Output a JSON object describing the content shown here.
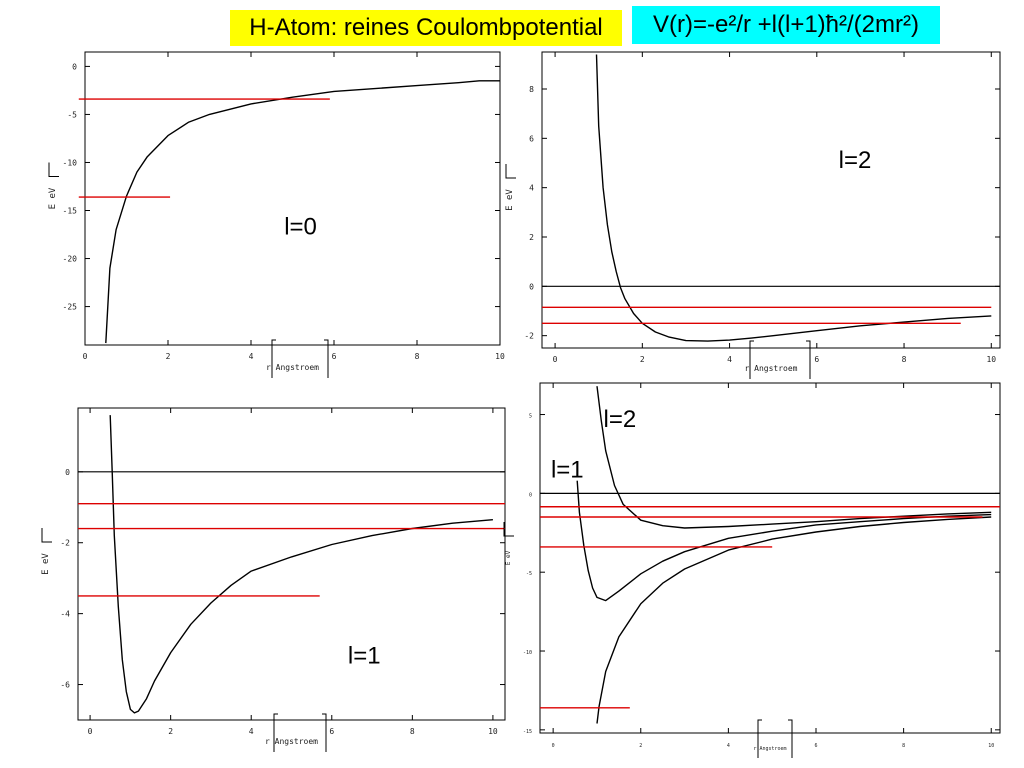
{
  "header": {
    "title": "H-Atom: reines Coulombpotential",
    "formula": "V(r)=-e²/r +l(l+1)ħ²/(2mr²)"
  },
  "colors": {
    "title_bg": "#ffff00",
    "formula_bg": "#00ffff",
    "level_lines": "#dd0000",
    "curves": "#000000"
  },
  "chart_data": [
    {
      "id": "l0",
      "type": "line",
      "xlabel": "r Angstroem",
      "ylabel": "E eV",
      "xlim": [
        0,
        10
      ],
      "ylim": [
        -29,
        1.5
      ],
      "xticks": [
        0,
        2,
        4,
        6,
        8,
        10
      ],
      "xtick_labels": [
        "0",
        "2",
        "4",
        "6",
        "8",
        "10"
      ],
      "yticks": [
        0,
        -5,
        -10,
        -15,
        -20,
        -25
      ],
      "ytick_labels": [
        "0",
        "-5",
        "-10",
        "-15",
        "-20",
        "-25"
      ],
      "zero_line": false,
      "annotations": [
        {
          "text": "l=0",
          "x": 4.8,
          "y": -17.5
        }
      ],
      "series": [
        {
          "x": [
            0.5,
            0.6,
            0.75,
            1.0,
            1.25,
            1.5,
            2.0,
            2.5,
            3.0,
            4.0,
            5.0,
            6.0,
            8.0,
            9.0,
            9.5,
            10.0
          ],
          "y": [
            -28.8,
            -21.0,
            -17.0,
            -13.5,
            -11.0,
            -9.4,
            -7.2,
            -5.8,
            -5.0,
            -3.9,
            -3.2,
            -2.6,
            -2.0,
            -1.7,
            -1.5,
            -1.5
          ]
        }
      ],
      "levels": [
        {
          "y": -3.4,
          "x0": -0.15,
          "x1": 5.9
        },
        {
          "y": -13.6,
          "x0": -0.15,
          "x1": 2.05
        }
      ]
    },
    {
      "id": "l2",
      "type": "line",
      "xlabel": "r Angstroem",
      "ylabel": "E eV",
      "xlim": [
        -0.3,
        10.2
      ],
      "ylim": [
        -2.5,
        9.5
      ],
      "xticks": [
        0,
        2,
        4,
        6,
        8,
        10
      ],
      "xtick_labels": [
        "0",
        "2",
        "4",
        "6",
        "8",
        "10"
      ],
      "yticks": [
        8,
        6,
        4,
        2,
        0,
        -2
      ],
      "ytick_labels": [
        "8",
        "6",
        "4",
        "2",
        "0",
        "-2"
      ],
      "zero_line": true,
      "annotations": [
        {
          "text": "l=2",
          "x": 6.5,
          "y": 4.8
        }
      ],
      "series": [
        {
          "x": [
            0.95,
            1.0,
            1.1,
            1.2,
            1.3,
            1.4,
            1.5,
            1.6,
            1.8,
            2.0,
            2.3,
            2.6,
            3.0,
            3.5,
            4.0,
            4.5,
            5.0,
            6.0,
            7.0,
            8.0,
            9.0,
            9.5,
            10.0
          ],
          "y": [
            9.4,
            6.5,
            4.0,
            2.5,
            1.4,
            0.6,
            -0.05,
            -0.5,
            -1.1,
            -1.5,
            -1.85,
            -2.05,
            -2.2,
            -2.22,
            -2.18,
            -2.1,
            -2.0,
            -1.8,
            -1.6,
            -1.45,
            -1.3,
            -1.25,
            -1.2
          ]
        }
      ],
      "levels": [
        {
          "y": -0.85,
          "x0": -0.3,
          "x1": 10.0
        },
        {
          "y": -1.5,
          "x0": -0.3,
          "x1": 9.3
        }
      ]
    },
    {
      "id": "l1",
      "type": "line",
      "xlabel": "r Angstroem",
      "ylabel": "E eV",
      "xlim": [
        -0.3,
        10.3
      ],
      "ylim": [
        -7.0,
        1.8
      ],
      "xticks": [
        0,
        2,
        4,
        6,
        8,
        10
      ],
      "xtick_labels": [
        "0",
        "2",
        "4",
        "6",
        "8",
        "10"
      ],
      "yticks": [
        0,
        -2,
        -4,
        -6
      ],
      "ytick_labels": [
        "0",
        "-2",
        "-4",
        "-6"
      ],
      "zero_line": true,
      "annotations": [
        {
          "text": "l=1",
          "x": 6.4,
          "y": -5.4
        }
      ],
      "series": [
        {
          "x": [
            0.5,
            0.55,
            0.6,
            0.7,
            0.8,
            0.9,
            1.0,
            1.1,
            1.2,
            1.4,
            1.6,
            2.0,
            2.5,
            3.0,
            3.5,
            4.0,
            5.0,
            6.0,
            7.0,
            8.0,
            9.0,
            10.0
          ],
          "y": [
            1.6,
            0.0,
            -1.8,
            -3.8,
            -5.3,
            -6.2,
            -6.7,
            -6.8,
            -6.75,
            -6.4,
            -5.9,
            -5.1,
            -4.3,
            -3.7,
            -3.2,
            -2.8,
            -2.4,
            -2.05,
            -1.8,
            -1.6,
            -1.45,
            -1.35
          ]
        }
      ],
      "levels": [
        {
          "y": -0.9,
          "x0": -0.3,
          "x1": 10.3
        },
        {
          "y": -1.6,
          "x0": -0.3,
          "x1": 10.3
        },
        {
          "y": -3.5,
          "x0": -0.3,
          "x1": 5.7
        }
      ]
    },
    {
      "id": "combined",
      "type": "line",
      "xlabel": "r Angstroem",
      "ylabel": "E eV",
      "xlim": [
        -0.3,
        10.2
      ],
      "ylim": [
        -15.2,
        7.0
      ],
      "xticks": [
        0,
        2,
        4,
        6,
        8,
        10
      ],
      "xtick_labels": [
        "0",
        "2",
        "4",
        "6",
        "8",
        "10"
      ],
      "yticks": [
        5,
        0,
        -5,
        -10,
        -15
      ],
      "ytick_labels": [
        "5",
        "0",
        "-5",
        "-10",
        "-15"
      ],
      "zero_line": true,
      "annotations": [
        {
          "text": "l=2",
          "x": 1.15,
          "y": 4.2
        },
        {
          "text": "l=1",
          "x": -0.05,
          "y": 1.0
        }
      ],
      "series": [
        {
          "x": [
            1.0,
            1.1,
            1.2,
            1.4,
            1.6,
            2.0,
            2.5,
            3.0,
            4.0,
            5.0,
            6.0,
            7.0,
            8.0,
            9.0,
            10.0
          ],
          "y": [
            6.8,
            4.6,
            2.7,
            0.5,
            -0.7,
            -1.7,
            -2.05,
            -2.2,
            -2.1,
            -1.95,
            -1.8,
            -1.6,
            -1.45,
            -1.3,
            -1.2
          ]
        },
        {
          "x": [
            0.55,
            0.6,
            0.7,
            0.8,
            0.9,
            1.0,
            1.2,
            1.5,
            2.0,
            2.5,
            3.0,
            4.0,
            5.0,
            6.0,
            7.0,
            8.0,
            9.0,
            10.0
          ],
          "y": [
            0.8,
            -1.2,
            -3.3,
            -4.9,
            -6.0,
            -6.6,
            -6.8,
            -6.2,
            -5.1,
            -4.3,
            -3.7,
            -2.85,
            -2.4,
            -2.0,
            -1.8,
            -1.6,
            -1.45,
            -1.35
          ]
        },
        {
          "x": [
            1.0,
            1.05,
            1.2,
            1.5,
            2.0,
            2.5,
            3.0,
            4.0,
            5.0,
            6.0,
            7.0,
            8.0,
            9.0,
            10.0
          ],
          "y": [
            -14.6,
            -13.5,
            -11.3,
            -9.1,
            -7.0,
            -5.7,
            -4.8,
            -3.6,
            -2.9,
            -2.45,
            -2.1,
            -1.85,
            -1.65,
            -1.5
          ]
        }
      ],
      "levels": [
        {
          "y": -0.85,
          "x0": -0.3,
          "x1": 10.2
        },
        {
          "y": -1.5,
          "x0": -0.3,
          "x1": 9.8
        },
        {
          "y": -3.4,
          "x0": -0.3,
          "x1": 5.0
        },
        {
          "y": -13.6,
          "x0": -0.3,
          "x1": 1.75
        }
      ]
    }
  ]
}
